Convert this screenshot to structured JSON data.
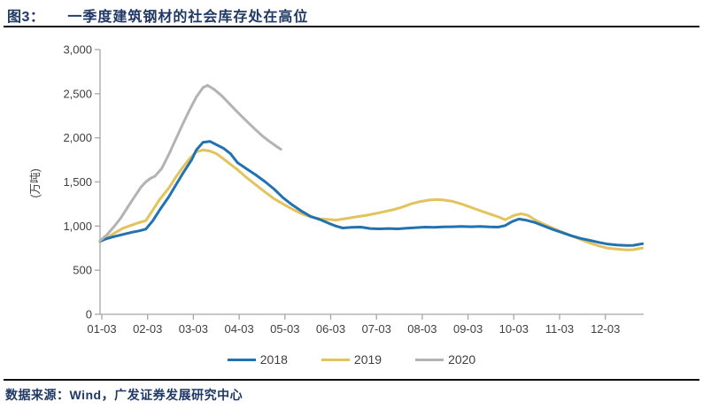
{
  "figure": {
    "label": "图3：",
    "title": "一季度建筑钢材的社会库存处在高位"
  },
  "footer": {
    "source": "数据来源：Wind，广发证券发展研究中心"
  },
  "colors": {
    "title_text": "#1f3864",
    "rule": "#0d0d0d",
    "axis_line": "#a6a6a6",
    "tick_text": "#3f3f3f",
    "series_2018": "#2272b2",
    "series_2019": "#e3c35b",
    "series_2020": "#b3b3b3"
  },
  "chart_data": {
    "type": "line",
    "title": "一季度建筑钢材的社会库存处在高位",
    "xlabel": "",
    "ylabel": "(万吨)",
    "ylim": [
      0,
      3000
    ],
    "grid": false,
    "legend_position": "bottom",
    "y_ticks": [
      {
        "value": 0,
        "label": "0"
      },
      {
        "value": 500,
        "label": "500"
      },
      {
        "value": 1000,
        "label": "1,000"
      },
      {
        "value": 1500,
        "label": "1,500"
      },
      {
        "value": 2000,
        "label": "2,000"
      },
      {
        "value": 2500,
        "label": "2,500"
      },
      {
        "value": 3000,
        "label": "3,000"
      }
    ],
    "x_ticks": [
      {
        "month": 1,
        "label": "01-03"
      },
      {
        "month": 2,
        "label": "02-03"
      },
      {
        "month": 3,
        "label": "03-03"
      },
      {
        "month": 4,
        "label": "04-03"
      },
      {
        "month": 5,
        "label": "05-03"
      },
      {
        "month": 6,
        "label": "06-03"
      },
      {
        "month": 7,
        "label": "07-03"
      },
      {
        "month": 8,
        "label": "08-03"
      },
      {
        "month": 9,
        "label": "09-03"
      },
      {
        "month": 10,
        "label": "10-03"
      },
      {
        "month": 11,
        "label": "11-03"
      },
      {
        "month": 12,
        "label": "12-03"
      }
    ],
    "series": [
      {
        "name": "2019",
        "color": "#e3c35b",
        "points": [
          [
            1.0,
            820
          ],
          [
            1.15,
            868
          ],
          [
            1.3,
            915
          ],
          [
            1.5,
            975
          ],
          [
            1.7,
            1012
          ],
          [
            1.85,
            1038
          ],
          [
            2.0,
            1062
          ],
          [
            2.15,
            1180
          ],
          [
            2.3,
            1300
          ],
          [
            2.5,
            1430
          ],
          [
            2.65,
            1550
          ],
          [
            2.8,
            1660
          ],
          [
            2.95,
            1760
          ],
          [
            3.1,
            1840
          ],
          [
            3.25,
            1862
          ],
          [
            3.4,
            1850
          ],
          [
            3.55,
            1818
          ],
          [
            3.7,
            1760
          ],
          [
            3.85,
            1700
          ],
          [
            4.0,
            1640
          ],
          [
            4.2,
            1550
          ],
          [
            4.4,
            1468
          ],
          [
            4.6,
            1388
          ],
          [
            4.8,
            1310
          ],
          [
            5.0,
            1250
          ],
          [
            5.2,
            1192
          ],
          [
            5.4,
            1140
          ],
          [
            5.6,
            1105
          ],
          [
            5.8,
            1082
          ],
          [
            6.0,
            1075
          ],
          [
            6.15,
            1068
          ],
          [
            6.4,
            1088
          ],
          [
            6.6,
            1105
          ],
          [
            6.8,
            1120
          ],
          [
            7.0,
            1140
          ],
          [
            7.2,
            1162
          ],
          [
            7.4,
            1185
          ],
          [
            7.6,
            1215
          ],
          [
            7.8,
            1252
          ],
          [
            8.0,
            1278
          ],
          [
            8.2,
            1295
          ],
          [
            8.35,
            1300
          ],
          [
            8.5,
            1295
          ],
          [
            8.7,
            1280
          ],
          [
            8.9,
            1250
          ],
          [
            9.1,
            1212
          ],
          [
            9.3,
            1175
          ],
          [
            9.5,
            1140
          ],
          [
            9.7,
            1105
          ],
          [
            9.85,
            1072
          ],
          [
            10.05,
            1122
          ],
          [
            10.2,
            1140
          ],
          [
            10.35,
            1122
          ],
          [
            10.5,
            1070
          ],
          [
            10.7,
            1020
          ],
          [
            10.9,
            975
          ],
          [
            11.1,
            930
          ],
          [
            11.3,
            888
          ],
          [
            11.5,
            848
          ],
          [
            11.7,
            808
          ],
          [
            11.9,
            775
          ],
          [
            12.1,
            748
          ],
          [
            12.3,
            738
          ],
          [
            12.5,
            730
          ],
          [
            12.65,
            732
          ],
          [
            12.85,
            752
          ]
        ]
      },
      {
        "name": "2018",
        "color": "#2272b2",
        "points": [
          [
            1.0,
            830
          ],
          [
            1.15,
            858
          ],
          [
            1.3,
            880
          ],
          [
            1.5,
            905
          ],
          [
            1.7,
            930
          ],
          [
            1.85,
            945
          ],
          [
            2.0,
            965
          ],
          [
            2.15,
            1060
          ],
          [
            2.3,
            1180
          ],
          [
            2.5,
            1330
          ],
          [
            2.65,
            1460
          ],
          [
            2.8,
            1590
          ],
          [
            3.0,
            1750
          ],
          [
            3.1,
            1860
          ],
          [
            3.25,
            1950
          ],
          [
            3.4,
            1960
          ],
          [
            3.55,
            1920
          ],
          [
            3.7,
            1880
          ],
          [
            3.85,
            1820
          ],
          [
            4.0,
            1720
          ],
          [
            4.2,
            1650
          ],
          [
            4.4,
            1580
          ],
          [
            4.6,
            1505
          ],
          [
            4.8,
            1420
          ],
          [
            5.0,
            1320
          ],
          [
            5.2,
            1240
          ],
          [
            5.4,
            1170
          ],
          [
            5.6,
            1110
          ],
          [
            5.8,
            1075
          ],
          [
            6.0,
            1030
          ],
          [
            6.15,
            1000
          ],
          [
            6.3,
            978
          ],
          [
            6.5,
            985
          ],
          [
            6.7,
            988
          ],
          [
            6.9,
            972
          ],
          [
            7.1,
            968
          ],
          [
            7.3,
            972
          ],
          [
            7.5,
            968
          ],
          [
            7.7,
            975
          ],
          [
            7.9,
            982
          ],
          [
            8.1,
            988
          ],
          [
            8.3,
            985
          ],
          [
            8.5,
            990
          ],
          [
            8.7,
            992
          ],
          [
            8.9,
            995
          ],
          [
            9.1,
            992
          ],
          [
            9.3,
            995
          ],
          [
            9.5,
            990
          ],
          [
            9.7,
            988
          ],
          [
            9.85,
            1005
          ],
          [
            10.0,
            1050
          ],
          [
            10.15,
            1080
          ],
          [
            10.3,
            1068
          ],
          [
            10.5,
            1040
          ],
          [
            10.7,
            1000
          ],
          [
            10.9,
            960
          ],
          [
            11.1,
            925
          ],
          [
            11.3,
            890
          ],
          [
            11.5,
            860
          ],
          [
            11.7,
            838
          ],
          [
            11.9,
            815
          ],
          [
            12.1,
            795
          ],
          [
            12.3,
            786
          ],
          [
            12.5,
            780
          ],
          [
            12.65,
            782
          ],
          [
            12.85,
            800
          ]
        ]
      },
      {
        "name": "2020",
        "color": "#b3b3b3",
        "points": [
          [
            1.0,
            835
          ],
          [
            1.15,
            902
          ],
          [
            1.3,
            990
          ],
          [
            1.45,
            1090
          ],
          [
            1.6,
            1210
          ],
          [
            1.75,
            1330
          ],
          [
            1.9,
            1445
          ],
          [
            2.0,
            1500
          ],
          [
            2.1,
            1540
          ],
          [
            2.2,
            1565
          ],
          [
            2.35,
            1655
          ],
          [
            2.5,
            1810
          ],
          [
            2.65,
            1980
          ],
          [
            2.8,
            2150
          ],
          [
            2.95,
            2310
          ],
          [
            3.1,
            2460
          ],
          [
            3.25,
            2570
          ],
          [
            3.35,
            2595
          ],
          [
            3.5,
            2545
          ],
          [
            3.65,
            2480
          ],
          [
            3.8,
            2400
          ],
          [
            3.95,
            2320
          ],
          [
            4.1,
            2240
          ],
          [
            4.25,
            2165
          ],
          [
            4.4,
            2090
          ],
          [
            4.55,
            2020
          ],
          [
            4.7,
            1960
          ],
          [
            4.85,
            1905
          ],
          [
            4.95,
            1870
          ]
        ]
      }
    ],
    "legend_order": [
      "2018",
      "2019",
      "2020"
    ]
  }
}
